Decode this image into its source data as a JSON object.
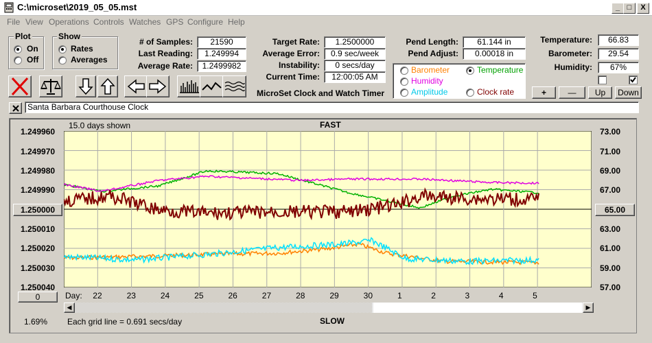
{
  "window": {
    "title": "C:\\microset\\2019_05_05.mst",
    "minimize": "_",
    "maximize": "□",
    "close": "X"
  },
  "menu": [
    "File",
    "View",
    "Operations",
    "Controls",
    "Watches",
    "GPS",
    "Configure",
    "Help"
  ],
  "plot_group": {
    "title": "Plot",
    "on": "On",
    "off": "Off",
    "selected": "On"
  },
  "show_group": {
    "title": "Show",
    "rates": "Rates",
    "averages": "Averages",
    "selected": "Rates"
  },
  "readouts_left": {
    "samples_label": "# of Samples:",
    "samples": "21590",
    "last_label": "Last Reading:",
    "last": "1.249994",
    "avg_label": "Average Rate:",
    "avg": "1.2499982"
  },
  "readouts_mid": {
    "target_label": "Target Rate:",
    "target": "1.2500000",
    "error_label": "Average Error:",
    "error": "0.9 sec/week",
    "instab_label": "Instability:",
    "instab": "0 secs/day",
    "time_label": "Current Time:",
    "time": "12:00:05 AM",
    "app_caption": "MicroSet Clock and Watch Timer"
  },
  "readouts_pend": {
    "length_label": "Pend Length:",
    "length": "61.144 in",
    "adjust_label": "Pend Adjust:",
    "adjust": "0.00018 in"
  },
  "overlay_group": {
    "barometer": "Barometer",
    "temperature": "Temperature",
    "humidity": "Humidity",
    "amplitude": "Amplitude",
    "clock_rate": "Clock rate",
    "selected": "Temperature"
  },
  "readouts_env": {
    "temp_label": "Temperature:",
    "temp": "66.83",
    "baro_label": "Barometer:",
    "baro": "29.54",
    "hum_label": "Humidity:",
    "hum": "67%"
  },
  "env_buttons": {
    "plus": "+",
    "minus": "—",
    "up": "Up",
    "down": "Down"
  },
  "description": "Santa Barbara Courthouse Clock",
  "plot": {
    "days_shown": "15.0 days shown",
    "fast": "FAST",
    "slow": "SLOW",
    "left_axis": [
      "1.249960",
      "1.249970",
      "1.249980",
      "1.249990",
      "1.250000",
      "1.250010",
      "1.250020",
      "1.250030",
      "1.250040"
    ],
    "left_highlight": "1.250000",
    "right_axis": [
      "73.00",
      "71.00",
      "69.00",
      "67.00",
      "65.00",
      "63.00",
      "61.00",
      "59.00",
      "57.00"
    ],
    "right_highlight": "65.00",
    "day_label": "Day:",
    "days": [
      "22",
      "23",
      "24",
      "25",
      "26",
      "27",
      "28",
      "29",
      "30",
      "1",
      "2",
      "3",
      "4",
      "5"
    ],
    "scroll_left_value": "0",
    "percent": "1.69%",
    "grid_note": "Each grid line = 0.691 secs/day",
    "bg": "#ffffcc",
    "series_colors": {
      "rate": "#800000",
      "temperature": "#00b000",
      "humidity": "#e000e0",
      "barometer": "#ff8000",
      "amplitude": "#00e0ff"
    }
  }
}
